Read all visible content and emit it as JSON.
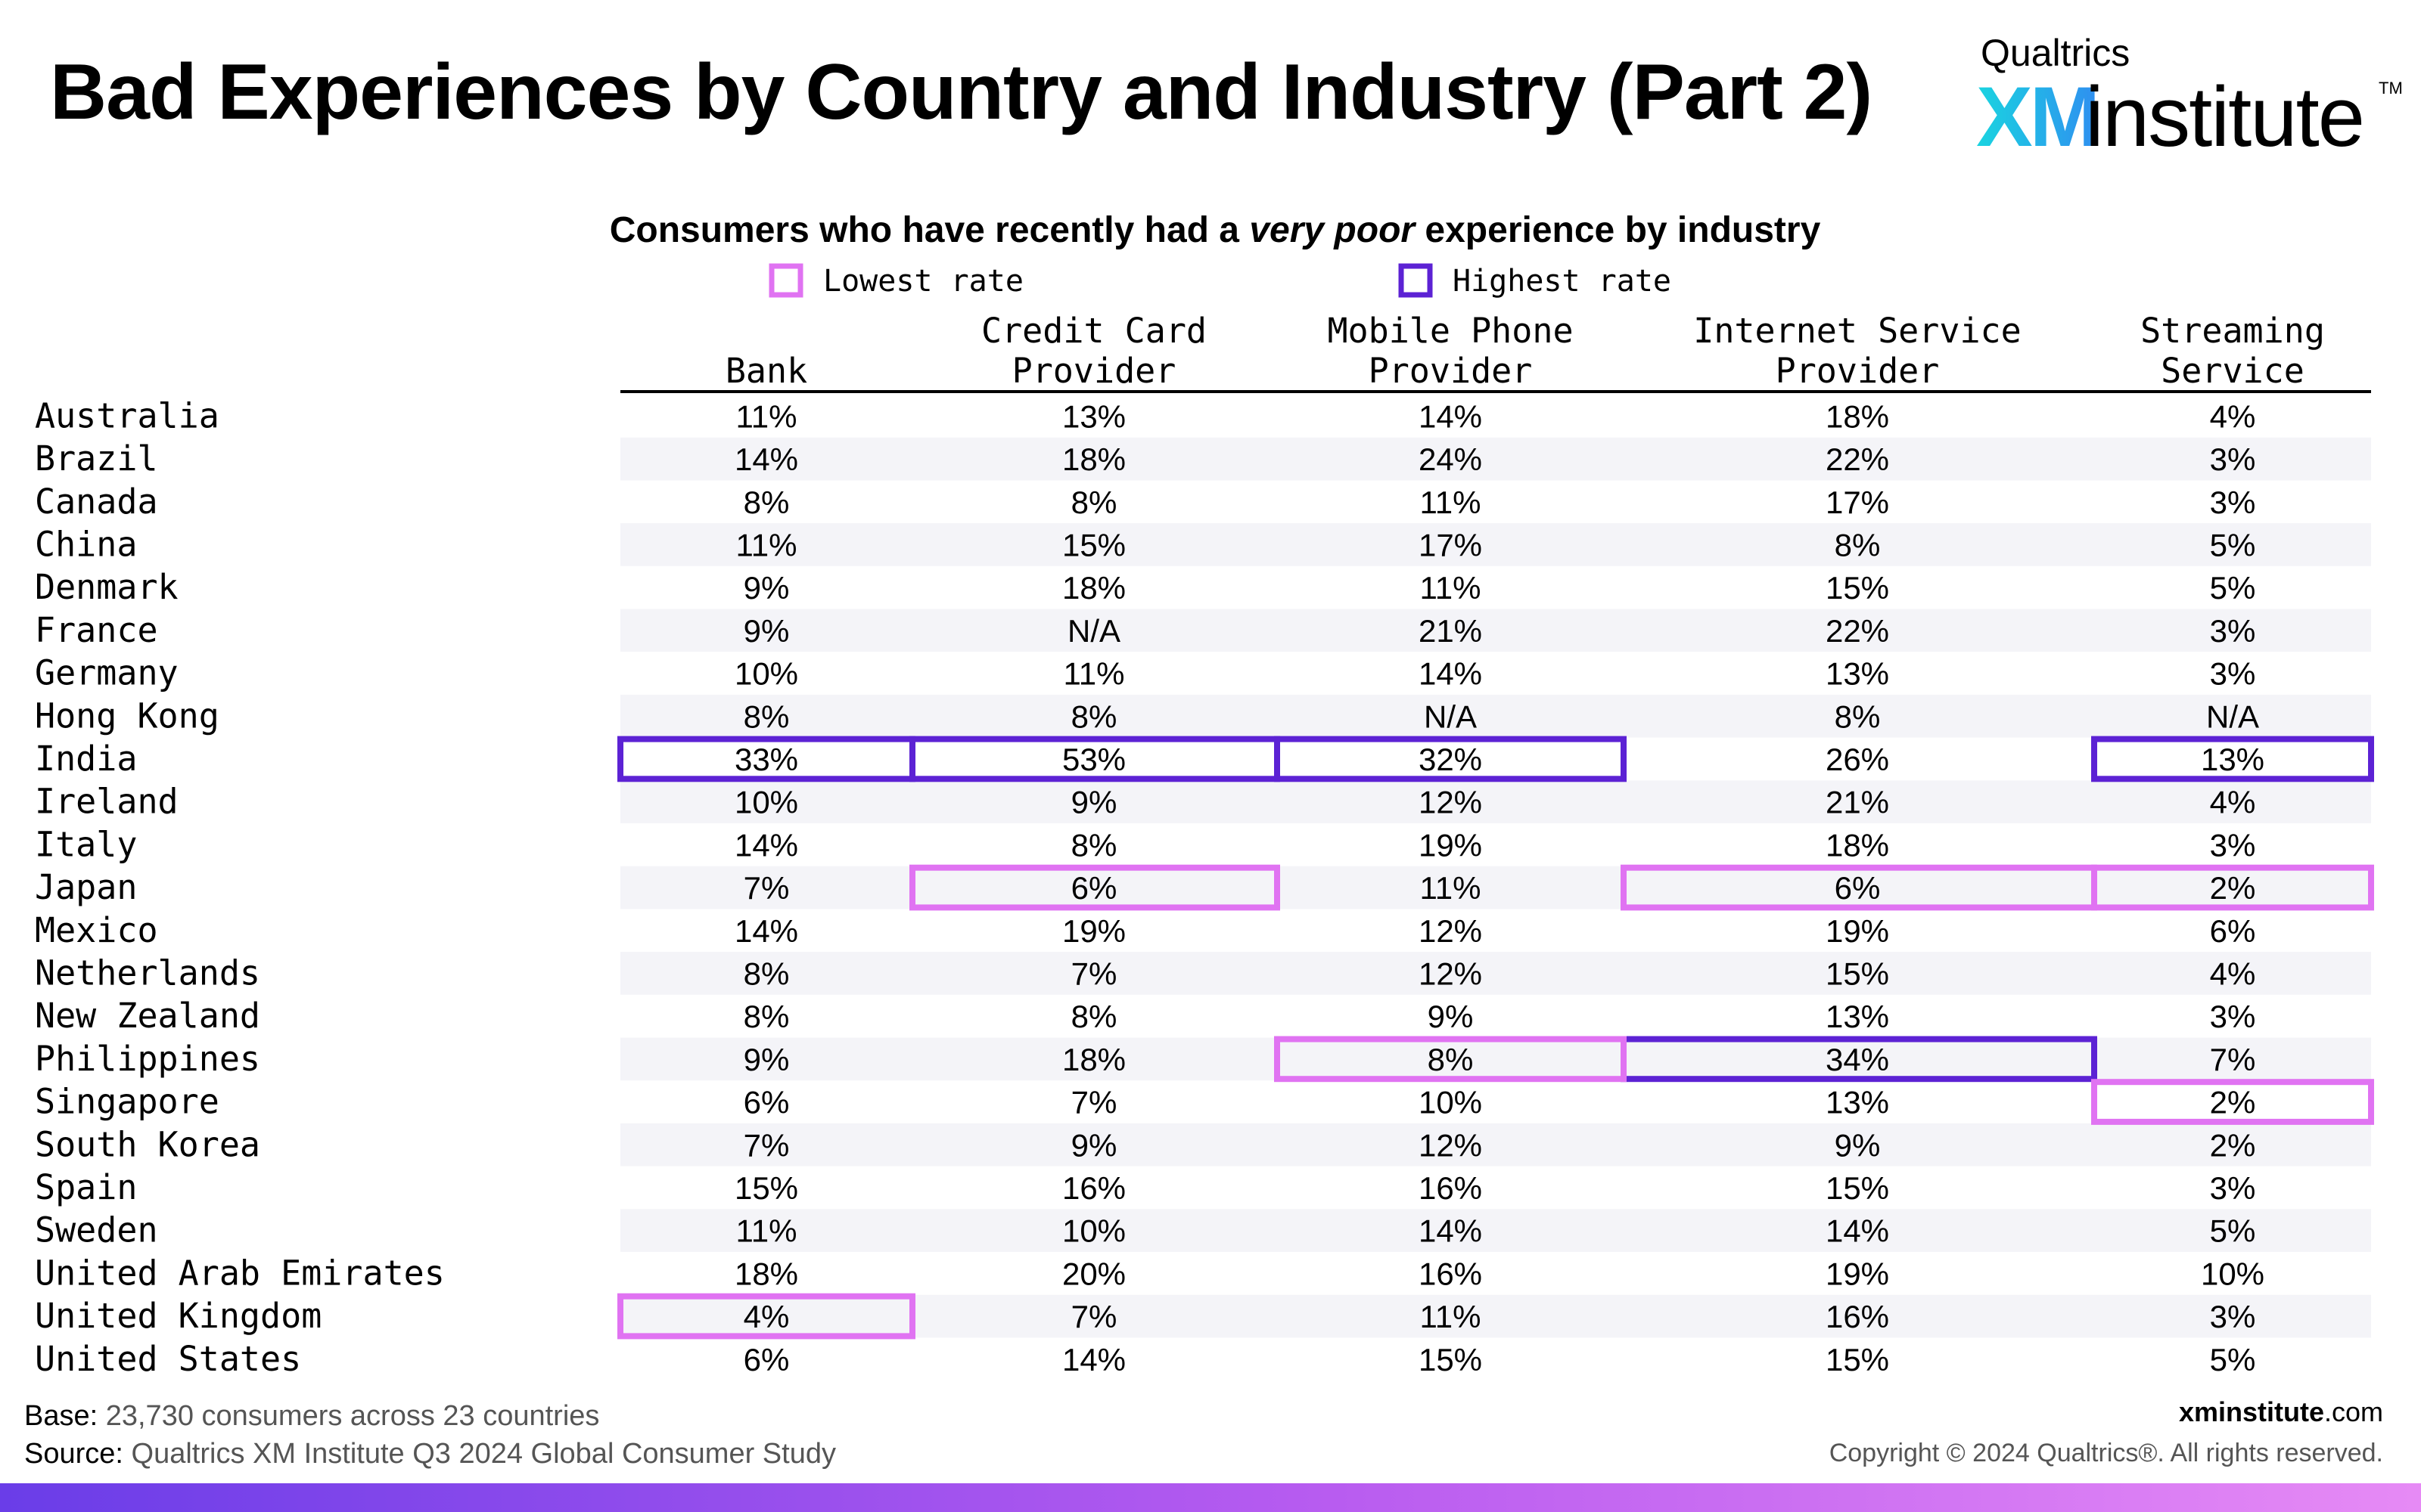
{
  "header": {
    "title": "Bad Experiences by Country and Industry (Part 2)",
    "logo_brand": "Qualtrics",
    "logo_xm": "XM",
    "logo_institute": "institute",
    "logo_tm": "TM"
  },
  "colors": {
    "lowest": "#e073f2",
    "highest": "#5c22d4",
    "row_stripe": "#f4f4f8",
    "bar_start": "#6a3de8",
    "bar_end": "#e68af5"
  },
  "chart_data": {
    "type": "table",
    "title_parts": [
      {
        "text": "Consumers who have recently had a ",
        "italic": false
      },
      {
        "text": "very poor",
        "italic": true
      },
      {
        "text": " experience by industry",
        "italic": false
      }
    ],
    "legend": [
      {
        "key": "lowest",
        "label": "Lowest rate"
      },
      {
        "key": "highest",
        "label": "Highest rate"
      }
    ],
    "columns": [
      {
        "lines": [
          "Bank"
        ]
      },
      {
        "lines": [
          "Credit Card",
          "Provider"
        ]
      },
      {
        "lines": [
          "Mobile Phone",
          "Provider"
        ]
      },
      {
        "lines": [
          "Internet Service",
          "Provider"
        ]
      },
      {
        "lines": [
          "Streaming",
          "Service"
        ]
      }
    ],
    "rows": [
      {
        "country": "Australia",
        "values": [
          "11%",
          "13%",
          "14%",
          "18%",
          "4%"
        ]
      },
      {
        "country": "Brazil",
        "values": [
          "14%",
          "18%",
          "24%",
          "22%",
          "3%"
        ]
      },
      {
        "country": "Canada",
        "values": [
          "8%",
          "8%",
          "11%",
          "17%",
          "3%"
        ]
      },
      {
        "country": "China",
        "values": [
          "11%",
          "15%",
          "17%",
          "8%",
          "5%"
        ]
      },
      {
        "country": "Denmark",
        "values": [
          "9%",
          "18%",
          "11%",
          "15%",
          "5%"
        ]
      },
      {
        "country": "France",
        "values": [
          "9%",
          "N/A",
          "21%",
          "22%",
          "3%"
        ]
      },
      {
        "country": "Germany",
        "values": [
          "10%",
          "11%",
          "14%",
          "13%",
          "3%"
        ]
      },
      {
        "country": "Hong Kong",
        "values": [
          "8%",
          "8%",
          "N/A",
          "8%",
          "N/A"
        ]
      },
      {
        "country": "India",
        "values": [
          "33%",
          "53%",
          "32%",
          "26%",
          "13%"
        ]
      },
      {
        "country": "Ireland",
        "values": [
          "10%",
          "9%",
          "12%",
          "21%",
          "4%"
        ]
      },
      {
        "country": "Italy",
        "values": [
          "14%",
          "8%",
          "19%",
          "18%",
          "3%"
        ]
      },
      {
        "country": "Japan",
        "values": [
          "7%",
          "6%",
          "11%",
          "6%",
          "2%"
        ]
      },
      {
        "country": "Mexico",
        "values": [
          "14%",
          "19%",
          "12%",
          "19%",
          "6%"
        ]
      },
      {
        "country": "Netherlands",
        "values": [
          "8%",
          "7%",
          "12%",
          "15%",
          "4%"
        ]
      },
      {
        "country": "New Zealand",
        "values": [
          "8%",
          "8%",
          "9%",
          "13%",
          "3%"
        ]
      },
      {
        "country": "Philippines",
        "values": [
          "9%",
          "18%",
          "8%",
          "34%",
          "7%"
        ]
      },
      {
        "country": "Singapore",
        "values": [
          "6%",
          "7%",
          "10%",
          "13%",
          "2%"
        ]
      },
      {
        "country": "South Korea",
        "values": [
          "7%",
          "9%",
          "12%",
          "9%",
          "2%"
        ]
      },
      {
        "country": "Spain",
        "values": [
          "15%",
          "16%",
          "16%",
          "15%",
          "3%"
        ]
      },
      {
        "country": "Sweden",
        "values": [
          "11%",
          "10%",
          "14%",
          "14%",
          "5%"
        ]
      },
      {
        "country": "United Arab Emirates",
        "values": [
          "18%",
          "20%",
          "16%",
          "19%",
          "10%"
        ]
      },
      {
        "country": "United Kingdom",
        "values": [
          "4%",
          "7%",
          "11%",
          "16%",
          "3%"
        ]
      },
      {
        "country": "United States",
        "values": [
          "6%",
          "14%",
          "15%",
          "15%",
          "5%"
        ]
      }
    ],
    "highlights": [
      {
        "row": 8,
        "col": 0,
        "type": "highest"
      },
      {
        "row": 8,
        "col": 1,
        "type": "highest"
      },
      {
        "row": 8,
        "col": 2,
        "type": "highest"
      },
      {
        "row": 8,
        "col": 4,
        "type": "highest"
      },
      {
        "row": 15,
        "col": 3,
        "type": "highest"
      },
      {
        "row": 11,
        "col": 1,
        "type": "lowest"
      },
      {
        "row": 11,
        "col": 3,
        "type": "lowest"
      },
      {
        "row": 11,
        "col": 4,
        "type": "lowest"
      },
      {
        "row": 15,
        "col": 2,
        "type": "lowest"
      },
      {
        "row": 16,
        "col": 4,
        "type": "lowest"
      },
      {
        "row": 21,
        "col": 0,
        "type": "lowest"
      }
    ]
  },
  "footer": {
    "base_label": "Base:",
    "base_text": "23,730 consumers across 23 countries",
    "source_label": "Source:",
    "source_text": "Qualtrics XM Institute Q3 2024 Global Consumer Study",
    "site_bold": "xminstitute",
    "site_rest": ".com",
    "copyright": "Copyright © 2024 Qualtrics®. All rights reserved."
  }
}
